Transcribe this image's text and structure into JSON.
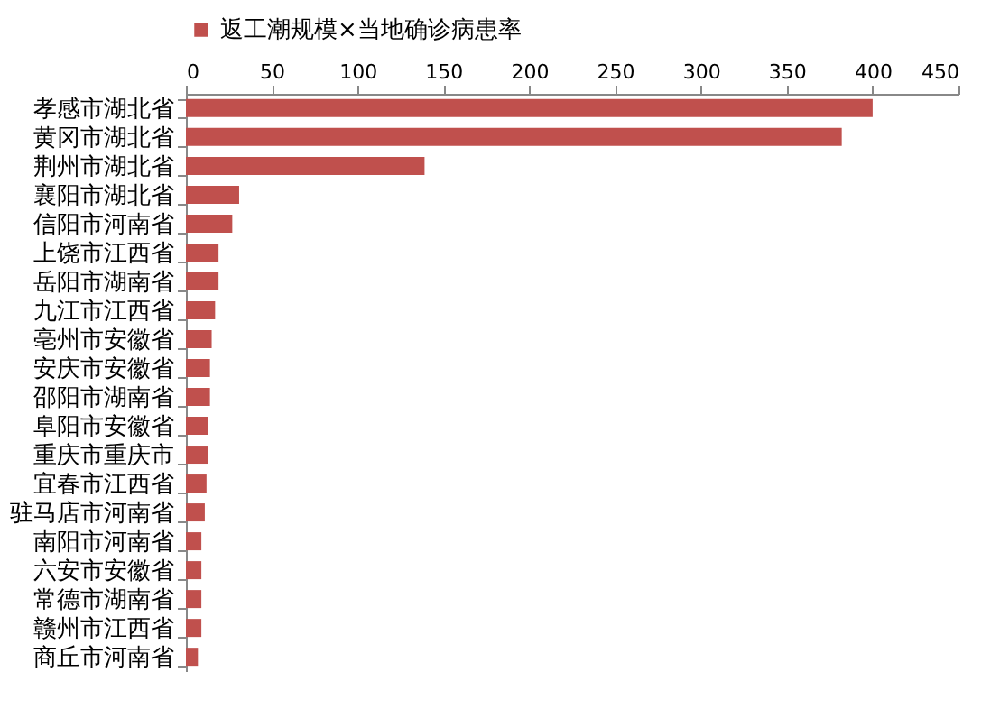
{
  "chart_data": {
    "type": "bar",
    "orientation": "horizontal",
    "categories": [
      "孝感市湖北省",
      "黄冈市湖北省",
      "荆州市湖北省",
      "襄阳市湖北省",
      "信阳市河南省",
      "上饶市江西省",
      "岳阳市湖南省",
      "九江市江西省",
      "亳州市安徽省",
      "安庆市安徽省",
      "邵阳市湖南省",
      "阜阳市安徽省",
      "重庆市重庆市",
      "宜春市江西省",
      "驻马店市河南省",
      "南阳市河南省",
      "六安市安徽省",
      "常德市湖南省",
      "赣州市江西省",
      "商丘市河南省"
    ],
    "series": [
      {
        "name": "返工潮规模×当地确诊病患率",
        "color": "#c0504d",
        "values": [
          400,
          382,
          139,
          31,
          27,
          19,
          19,
          17,
          15,
          14,
          14,
          13,
          13,
          12,
          11,
          9,
          9,
          9,
          9,
          7
        ]
      }
    ],
    "xlim": [
      0,
      450
    ],
    "xticks": [
      0,
      50,
      100,
      150,
      200,
      250,
      300,
      350,
      400,
      450
    ],
    "grid": false,
    "legend": "top"
  }
}
